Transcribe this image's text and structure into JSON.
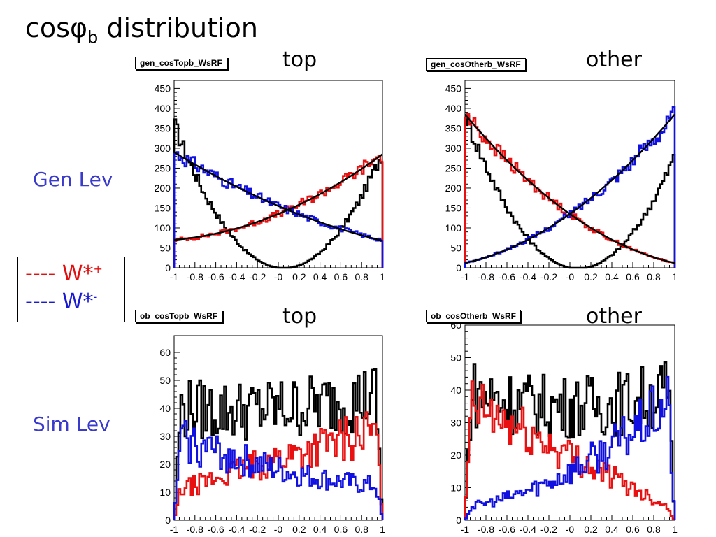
{
  "title": {
    "text": "cos",
    "phi": "φ",
    "sub": "b",
    "rest": " distribution"
  },
  "row_labels": {
    "gen": "Gen Lev",
    "sim": "Sim Lev"
  },
  "col_labels": {
    "tl": "top",
    "tr": "other",
    "bl": "top",
    "br": "other"
  },
  "legend": {
    "plus": {
      "dashes": "----",
      "label": "W*",
      "sup": "+",
      "color": "#e01010"
    },
    "minus": {
      "dashes": "----",
      "label": "W*",
      "sup": "-",
      "color": "#1a1ad0"
    }
  },
  "colors": {
    "total": "#000000",
    "wplus": "#e81010",
    "wminus": "#1010e0",
    "fit": "#000000"
  },
  "chart_data": [
    {
      "id": "gen_top",
      "type": "histogram",
      "hist_name": "gen_cosTopb_WsRF",
      "xlim": [
        -1,
        1
      ],
      "ylim": [
        0,
        470
      ],
      "xticks": [
        -1,
        -0.8,
        -0.6,
        -0.4,
        -0.2,
        0,
        0.2,
        0.4,
        0.6,
        0.8,
        1
      ],
      "xticklabels": [
        "-1",
        "-0.8",
        "-0.6",
        "-0.4",
        "-0.2",
        "-0",
        "0.2",
        "0.4",
        "0.6",
        "0.8",
        "1"
      ],
      "yticks": [
        0,
        50,
        100,
        150,
        200,
        250,
        300,
        350,
        400,
        450
      ],
      "bins": 100,
      "series": [
        {
          "role": "total",
          "approx_shape": {
            "type": "quadratic",
            "a": 360,
            "b": 0,
            "c": 290
          }
        },
        {
          "role": "wplus",
          "approx_shape": {
            "type": "quadratic",
            "a": 70,
            "b": 135,
            "c": 285
          }
        },
        {
          "role": "wminus",
          "approx_shape": {
            "type": "quadratic",
            "a": 290,
            "b": 155,
            "c": 70
          }
        }
      ],
      "fits": [
        {
          "role": "wplus",
          "a": 70,
          "b": 135,
          "c": 285
        },
        {
          "role": "wminus",
          "a": 290,
          "b": 155,
          "c": 68
        }
      ]
    },
    {
      "id": "gen_other",
      "type": "histogram",
      "hist_name": "gen_cosOtherb_WsRF",
      "xlim": [
        -1,
        1
      ],
      "ylim": [
        0,
        470
      ],
      "xticks": [
        -1,
        -0.8,
        -0.6,
        -0.4,
        -0.2,
        0,
        0.2,
        0.4,
        0.6,
        0.8,
        1
      ],
      "xticklabels": [
        "-1",
        "-0.8",
        "-0.6",
        "-0.4",
        "-0.2",
        "-0",
        "0.2",
        "0.4",
        "0.6",
        "0.8",
        "1"
      ],
      "yticks": [
        0,
        50,
        100,
        150,
        200,
        250,
        300,
        350,
        400,
        450
      ],
      "bins": 100,
      "series": [
        {
          "role": "total",
          "approx_shape": {
            "type": "quadratic",
            "a": 385,
            "b": 0,
            "c": 280
          }
        },
        {
          "role": "wplus",
          "approx_shape": {
            "type": "quadratic",
            "a": 385,
            "b": 135,
            "c": 12
          }
        },
        {
          "role": "wminus",
          "approx_shape": {
            "type": "quadratic",
            "a": 12,
            "b": 135,
            "c": 385
          }
        }
      ],
      "fits": [
        {
          "role": "wplus",
          "a": 385,
          "b": 135,
          "c": 12
        },
        {
          "role": "wminus",
          "a": 12,
          "b": 135,
          "c": 385
        }
      ]
    },
    {
      "id": "sim_top",
      "type": "histogram",
      "hist_name": "ob_cosTopb_WsRF",
      "xlim": [
        -1,
        1
      ],
      "ylim": [
        0,
        66
      ],
      "xticks": [
        -1,
        -0.8,
        -0.6,
        -0.4,
        -0.2,
        0,
        0.2,
        0.4,
        0.6,
        0.8,
        1
      ],
      "xticklabels": [
        "-1",
        "-0.8",
        "-0.6",
        "-0.4",
        "-0.2",
        "-0",
        "0.2",
        "0.4",
        "0.6",
        "0.8",
        "1"
      ],
      "yticks": [
        0,
        10,
        20,
        30,
        40,
        50,
        60
      ],
      "bins": 100,
      "series": [
        {
          "role": "total",
          "approx_shape": {
            "type": "quadratic",
            "a": 40,
            "b": 40,
            "c": 45
          }
        },
        {
          "role": "wplus",
          "approx_shape": {
            "type": "quadratic",
            "a": 10,
            "b": 22,
            "c": 33
          }
        },
        {
          "role": "wminus",
          "approx_shape": {
            "type": "quadratic",
            "a": 30,
            "b": 18,
            "c": 12
          }
        }
      ]
    },
    {
      "id": "sim_other",
      "type": "histogram",
      "hist_name": "ob_cosOtherb_WsRF",
      "xlim": [
        -1,
        1
      ],
      "ylim": [
        0,
        60
      ],
      "xticks": [
        -1,
        -0.8,
        -0.6,
        -0.4,
        -0.2,
        0,
        0.2,
        0.4,
        0.6,
        0.8,
        1
      ],
      "xticklabels": [
        "-1",
        "-0.8",
        "-0.6",
        "-0.4",
        "-0.2",
        "-0",
        "0.2",
        "0.4",
        "0.6",
        "0.8",
        "1"
      ],
      "yticks": [
        0,
        10,
        20,
        30,
        40,
        50,
        60
      ],
      "bins": 100,
      "series": [
        {
          "role": "total",
          "approx_shape": {
            "type": "quadratic",
            "a": 40,
            "b": 35,
            "c": 40
          }
        },
        {
          "role": "wplus",
          "approx_shape": {
            "type": "quadratic",
            "a": 36,
            "b": 20,
            "c": 3
          }
        },
        {
          "role": "wminus",
          "approx_shape": {
            "type": "quadratic",
            "a": 4,
            "b": 15,
            "c": 38
          }
        }
      ]
    }
  ]
}
